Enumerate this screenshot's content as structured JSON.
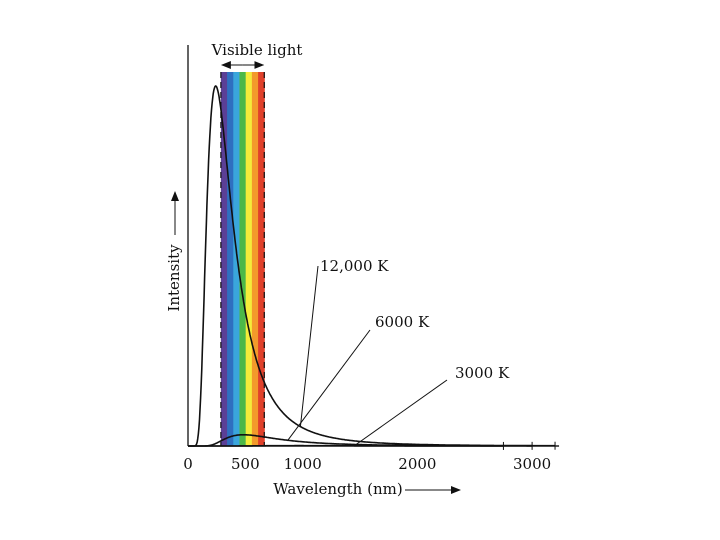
{
  "chart_data": {
    "type": "line",
    "title": "",
    "xlabel": "Wavelength (nm)",
    "ylabel": "Intensity",
    "xlim": [
      0,
      3200
    ],
    "ylim": [
      0,
      1
    ],
    "x_ticks": [
      {
        "value": 0,
        "label": "0"
      },
      {
        "value": 500,
        "label": "500"
      },
      {
        "value": 1000,
        "label": "1000"
      },
      {
        "value": 2000,
        "label": "2000"
      },
      {
        "value": 3000,
        "label": "3000"
      }
    ],
    "grid": false,
    "series": [
      {
        "name": "12,000 K",
        "temperature_K": 12000,
        "x_max": 3200
      },
      {
        "name": "6000 K",
        "temperature_K": 6000,
        "x_max": 3000
      },
      {
        "name": "3000 K",
        "temperature_K": 3000,
        "x_max": 2750
      }
    ],
    "visible_band": {
      "label": "Visible light",
      "range_nm": [
        400,
        700
      ],
      "colors": [
        "#5b3f96",
        "#2f6fc0",
        "#3aa6dc",
        "#4cb848",
        "#f4ec3a",
        "#f39a2b",
        "#e0412b"
      ]
    }
  }
}
